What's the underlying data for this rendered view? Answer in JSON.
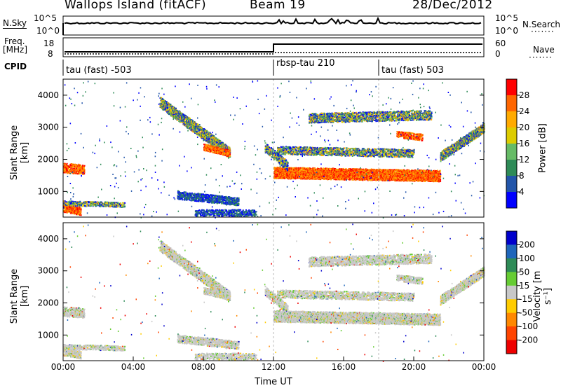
{
  "header": {
    "station": "Wallops Island (fitACF)",
    "beam": "Beam 19",
    "date": "28/Dec/2012"
  },
  "top_panels": {
    "nsky_label": "N.Sky",
    "nsky_ticks": [
      "10^5",
      "10^0"
    ],
    "nsearch_label": "N.Search",
    "nsearch_ticks": [
      "10^5",
      "10^0"
    ],
    "freq_label_1": "Freq.",
    "freq_label_2": "[MHz]",
    "freq_ticks": [
      "18",
      "8"
    ],
    "nave_label": "Nave",
    "nave_ticks": [
      "60",
      "0"
    ],
    "cpid_label": "CPID",
    "cpid_segments": [
      "tau (fast) -503",
      "rbsp-tau 210",
      "tau (fast) 503"
    ]
  },
  "chart_data": [
    {
      "type": "heatmap",
      "quantity": "Power",
      "ylabel": "Slant Range [km]",
      "yticks": [
        1000,
        2000,
        3000,
        4000
      ],
      "ylim": [
        200,
        4500
      ],
      "xlim": [
        0,
        24
      ],
      "colorbar_label": "Power [dB]",
      "colorbar_ticks": [
        "28",
        "24",
        "20",
        "16",
        "12",
        "8",
        "4"
      ],
      "colorbar_colors": [
        "#ff0000",
        "#ff6600",
        "#ffaa00",
        "#ddcc00",
        "#66bb66",
        "#2e8b57",
        "#2255aa",
        "#0000ff"
      ]
    },
    {
      "type": "heatmap",
      "quantity": "Velocity",
      "ylabel": "Slant Range [km]",
      "yticks": [
        1000,
        2000,
        3000,
        4000
      ],
      "ylim": [
        200,
        4500
      ],
      "xlim": [
        0,
        24
      ],
      "xlabel": "Time UT",
      "xticks": [
        "00:00",
        "04:00",
        "08:00",
        "12:00",
        "16:00",
        "20:00",
        "00:00"
      ],
      "colorbar_label": "Velocity [m s⁻¹]",
      "colorbar_ticks": [
        "200",
        "100",
        "50",
        "15",
        "-15",
        "-50",
        "-100",
        "-200"
      ],
      "colorbar_colors": [
        "#0000cc",
        "#1f66bb",
        "#2e8b57",
        "#66cc33",
        "#c8c8c8",
        "#ffcc00",
        "#ff8800",
        "#ff4400",
        "#ee0000"
      ]
    }
  ]
}
